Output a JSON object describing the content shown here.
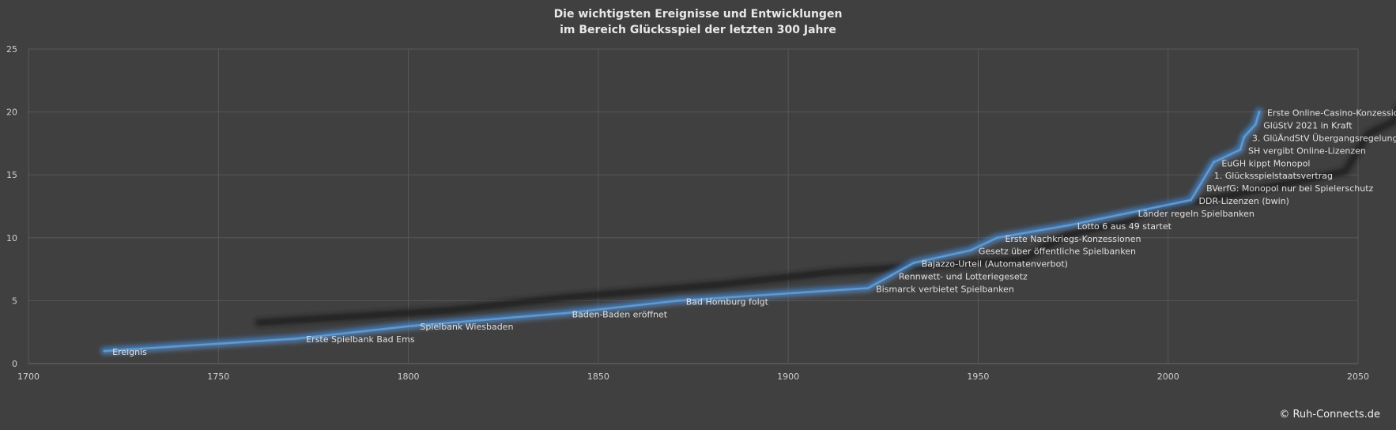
{
  "chart_data": {
    "type": "line",
    "title": [
      "Die wichtigsten Ereignisse und Entwicklungen",
      "im Bereich Glücksspiel der letzten 300 Jahre"
    ],
    "xlabel": "",
    "ylabel": "",
    "xlim": [
      1700,
      2050
    ],
    "ylim": [
      0,
      25
    ],
    "xticks": [
      1700,
      1750,
      1800,
      1850,
      1900,
      1950,
      2000,
      2050
    ],
    "yticks": [
      0,
      5,
      10,
      15,
      20,
      25
    ],
    "grid": true,
    "legend": "none",
    "line_color": "#5b9bd5",
    "points": [
      {
        "x": 1720,
        "y": 1,
        "label": "Ereignis"
      },
      {
        "x": 1771,
        "y": 2,
        "label": "Erste Spielbank Bad Ems"
      },
      {
        "x": 1801,
        "y": 3,
        "label": "Spielbank Wiesbaden"
      },
      {
        "x": 1841,
        "y": 4,
        "label": "Baden-Baden eröffnet"
      },
      {
        "x": 1871,
        "y": 5,
        "label": "Bad Homburg folgt"
      },
      {
        "x": 1921,
        "y": 6,
        "label": "Bismarck verbietet Spielbanken"
      },
      {
        "x": 1927,
        "y": 7,
        "label": "Rennwett- und Lotteriegesetz"
      },
      {
        "x": 1933,
        "y": 8,
        "label": "Bajazzo-Urteil (Automatenverbot)"
      },
      {
        "x": 1948,
        "y": 9,
        "label": "Gesetz über öffentliche Spielbanken"
      },
      {
        "x": 1955,
        "y": 10,
        "label": "Erste Nachkriegs-Konzessionen"
      },
      {
        "x": 1974,
        "y": 11,
        "label": "Lotto 6 aus 49 startet"
      },
      {
        "x": 1990,
        "y": 12,
        "label": "Länder regeln Spielbanken"
      },
      {
        "x": 2006,
        "y": 13,
        "label": "DDR-Lizenzen (bwin)"
      },
      {
        "x": 2008,
        "y": 14,
        "label": "BVerfG: Monopol nur bei Spielerschutz"
      },
      {
        "x": 2010,
        "y": 15,
        "label": "1. Glücksspielstaatsvertrag"
      },
      {
        "x": 2012,
        "y": 16,
        "label": "EuGH kippt Monopol"
      },
      {
        "x": 2019,
        "y": 17,
        "label": "SH vergibt Online-Lizenzen"
      },
      {
        "x": 2020,
        "y": 18,
        "label": "3. GlüÄndStV Übergangsregelung"
      },
      {
        "x": 2023,
        "y": 19,
        "label": "GlüStV 2021 in Kraft"
      },
      {
        "x": 2024,
        "y": 20,
        "label": "Erste Online-Casino-Konzessionen"
      }
    ]
  },
  "copyright": "© Ruh-Connects.de"
}
